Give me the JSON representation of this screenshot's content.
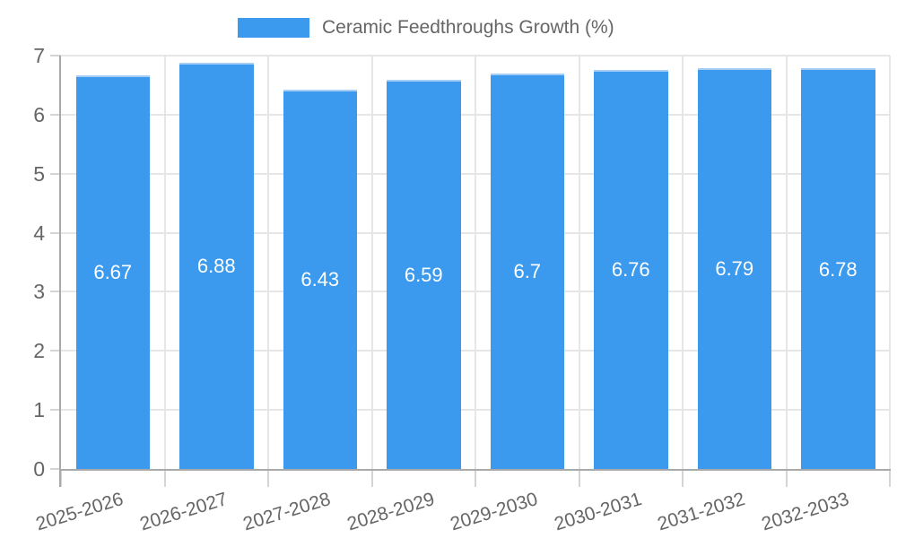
{
  "legend": {
    "label": "Ceramic Feedthroughs Growth (%)"
  },
  "colors": {
    "bar": "#3B99EE",
    "bar_edge": "#a6cdf5",
    "grid": "#e6e6e6",
    "axis": "#a9a9a9",
    "tick": "#d4d4d4",
    "text": "#666666",
    "bar_label": "#ffffff",
    "background": "#ffffff"
  },
  "chart_data": {
    "type": "bar",
    "title": "Ceramic Feedthroughs Growth (%)",
    "categories": [
      "2025-2026",
      "2026-2027",
      "2027-2028",
      "2028-2029",
      "2029-2030",
      "2030-2031",
      "2031-2032",
      "2032-2033"
    ],
    "values": [
      6.67,
      6.88,
      6.43,
      6.59,
      6.7,
      6.76,
      6.79,
      6.78
    ],
    "bar_labels": [
      "6.67",
      "6.88",
      "6.43",
      "6.59",
      "6.7",
      "6.76",
      "6.79",
      "6.78"
    ],
    "xlabel": "",
    "ylabel": "",
    "ylim": [
      0,
      7
    ],
    "yticks": [
      0,
      1,
      2,
      3,
      4,
      5,
      6,
      7
    ],
    "grid": true,
    "legend_position": "top",
    "bar_labels_visible": true
  }
}
